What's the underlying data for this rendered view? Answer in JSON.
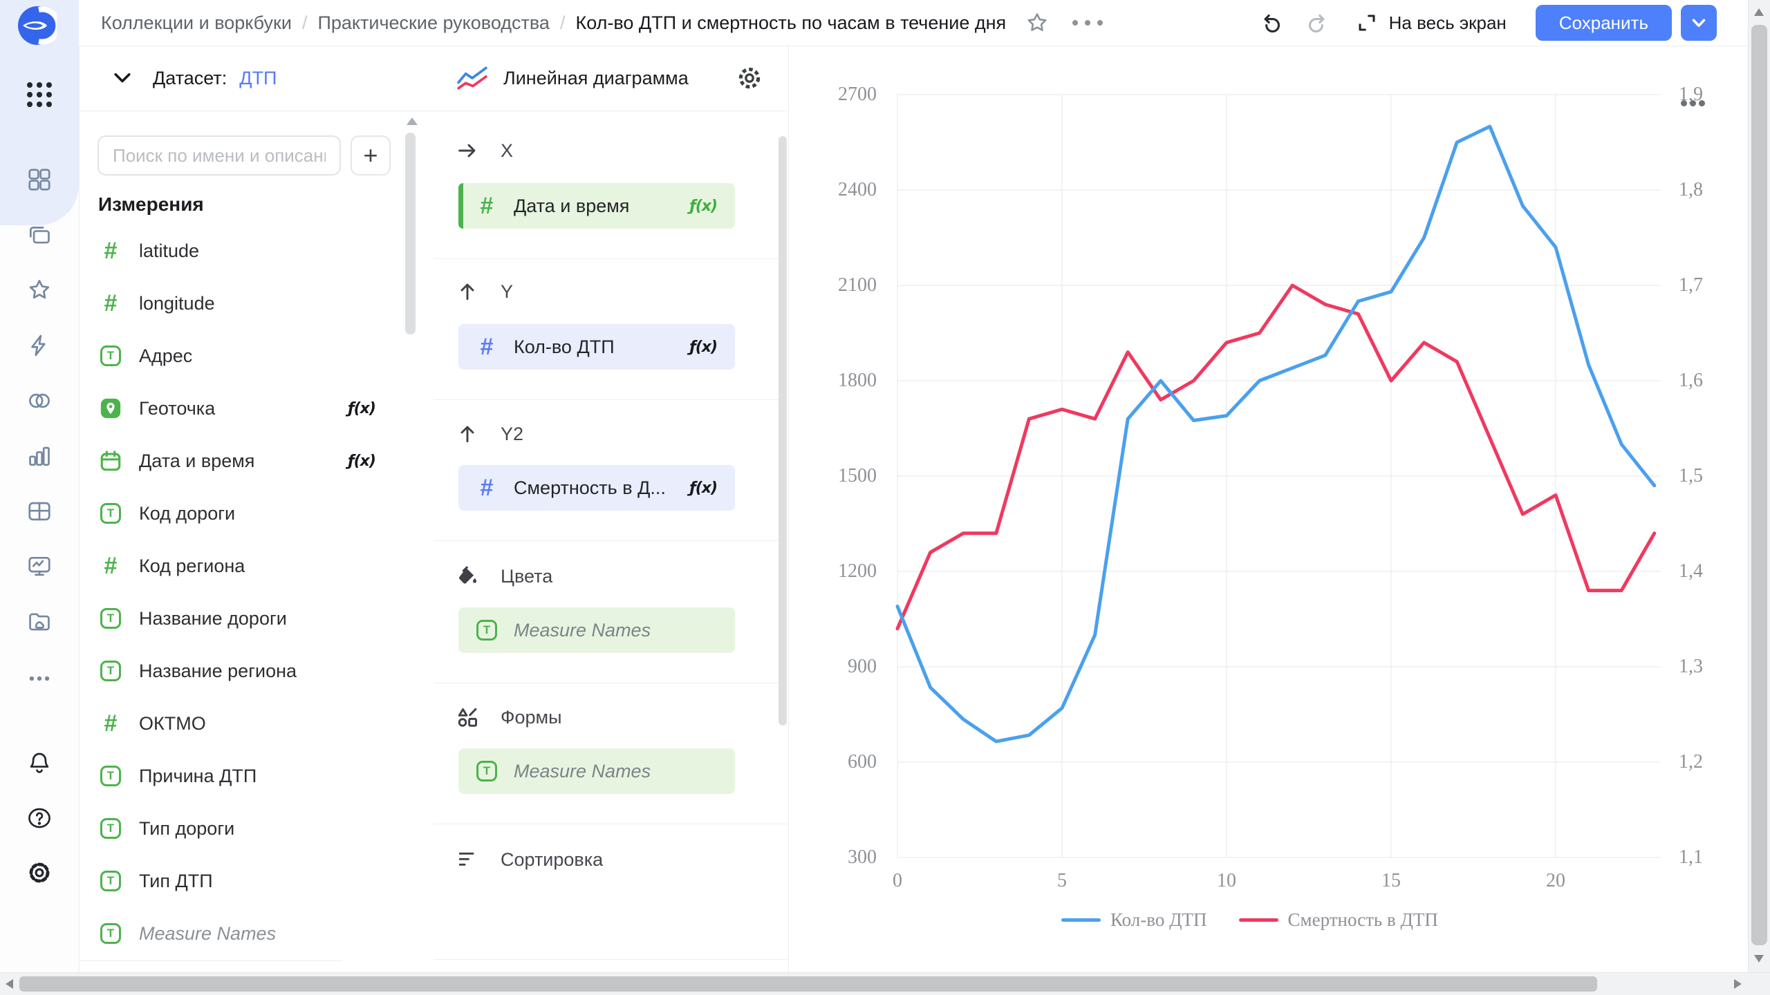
{
  "topbar": {
    "breadcrumb": [
      "Коллекции и воркбуки",
      "Практические руководства",
      "Кол-во ДТП и смертность по часам в течение дня"
    ],
    "fullscreen_label": "На весь экран",
    "save_label": "Сохранить"
  },
  "rail": {
    "main_items": [
      "squares",
      "collections-stack",
      "star",
      "lightning",
      "overlap-circles",
      "bar-chart",
      "grid-table",
      "monitor-pulse",
      "folder-cloud",
      "ellipsis"
    ],
    "bottom_items": [
      "bell",
      "question",
      "gear"
    ]
  },
  "dataset_panel": {
    "header_label": "Датасет:",
    "dataset_name": "ДТП",
    "search_placeholder": "Поиск по имени и описанию",
    "add_button_label": "+",
    "dimensions_title": "Измерения",
    "fx_label": "ƒ(x)",
    "fields": [
      {
        "name": "latitude",
        "type": "number"
      },
      {
        "name": "longitude",
        "type": "number"
      },
      {
        "name": "Адрес",
        "type": "text"
      },
      {
        "name": "Геоточка",
        "type": "geopoint",
        "fx": true
      },
      {
        "name": "Дата и время",
        "type": "date",
        "fx": true
      },
      {
        "name": "Код дороги",
        "type": "text"
      },
      {
        "name": "Код региона",
        "type": "number"
      },
      {
        "name": "Название дороги",
        "type": "text"
      },
      {
        "name": "Название региона",
        "type": "text"
      },
      {
        "name": "ОКТМО",
        "type": "number"
      },
      {
        "name": "Причина ДТП",
        "type": "text"
      },
      {
        "name": "Тип дороги",
        "type": "text"
      },
      {
        "name": "Тип ДТП",
        "type": "text"
      },
      {
        "name": "Measure Names",
        "type": "text",
        "italic": true
      }
    ]
  },
  "chart_config": {
    "chart_type_label": "Линейная диаграмма",
    "shelves": [
      {
        "label": "X",
        "icon": "arrow-right",
        "fields": [
          {
            "name": "Дата и время",
            "icon": "number",
            "tone": "green",
            "accent_bar": true,
            "fx": "green"
          }
        ]
      },
      {
        "label": "Y",
        "icon": "arrow-up",
        "fields": [
          {
            "name": "Кол-во ДТП",
            "icon": "number",
            "tone": "blue",
            "fx": "dark"
          }
        ]
      },
      {
        "label": "Y2",
        "icon": "arrow-up",
        "fields": [
          {
            "name": "Смертность в Д...",
            "icon": "number",
            "tone": "blue",
            "fx": "dark"
          }
        ]
      },
      {
        "label": "Цвета",
        "icon": "paint-bucket",
        "fields": [
          {
            "name": "Measure Names",
            "icon": "text",
            "tone": "green",
            "italic": true
          }
        ]
      },
      {
        "label": "Формы",
        "icon": "shapes",
        "fields": [
          {
            "name": "Measure Names",
            "icon": "text",
            "tone": "green",
            "italic": true
          }
        ]
      },
      {
        "label": "Сортировка",
        "icon": "sort",
        "fields": []
      }
    ]
  },
  "chart_data": {
    "type": "line",
    "x_hours": [
      0,
      1,
      2,
      3,
      4,
      5,
      6,
      7,
      8,
      9,
      10,
      11,
      12,
      13,
      14,
      15,
      16,
      17,
      18,
      19,
      20,
      21,
      22,
      23
    ],
    "series": [
      {
        "name": "Кол-во ДТП",
        "color": "#4AA0EE",
        "axis": "left",
        "values": [
          1090,
          835,
          735,
          665,
          685,
          770,
          1000,
          1680,
          1800,
          1675,
          1690,
          1800,
          1840,
          1880,
          2050,
          2080,
          2250,
          2550,
          2600,
          2350,
          2220,
          1850,
          1600,
          1470
        ]
      },
      {
        "name": "Смертность в ДТП",
        "color": "#F0395F",
        "axis": "right",
        "values": [
          1.34,
          1.42,
          1.44,
          1.44,
          1.56,
          1.57,
          1.56,
          1.63,
          1.58,
          1.6,
          1.64,
          1.65,
          1.7,
          1.68,
          1.67,
          1.6,
          1.64,
          1.62,
          1.54,
          1.46,
          1.48,
          1.38,
          1.38,
          1.44
        ]
      }
    ],
    "left_axis": {
      "min": 300,
      "max": 2700,
      "tick_values": [
        2700,
        2400,
        2100,
        1800,
        1500,
        1200,
        900,
        600,
        300
      ],
      "tick_labels": [
        "2700",
        "2400",
        "2100",
        "1800",
        "1500",
        "1200",
        "900",
        "600",
        "300"
      ]
    },
    "right_axis": {
      "min": 1.1,
      "max": 1.9,
      "tick_labels_top_to_bottom": [
        "1,9",
        "1,8",
        "1,7",
        "1,6",
        "1,5",
        "1,4",
        "1,3",
        "1,2",
        "1,1"
      ]
    },
    "x_axis": {
      "tick_values": [
        0,
        5,
        10,
        15,
        20
      ],
      "tick_labels": [
        "0",
        "5",
        "10",
        "15",
        "20"
      ]
    },
    "grid": true,
    "legend": {
      "position": "bottom",
      "items": [
        "Кол-во ДТП",
        "Смертность в ДТП"
      ]
    }
  }
}
